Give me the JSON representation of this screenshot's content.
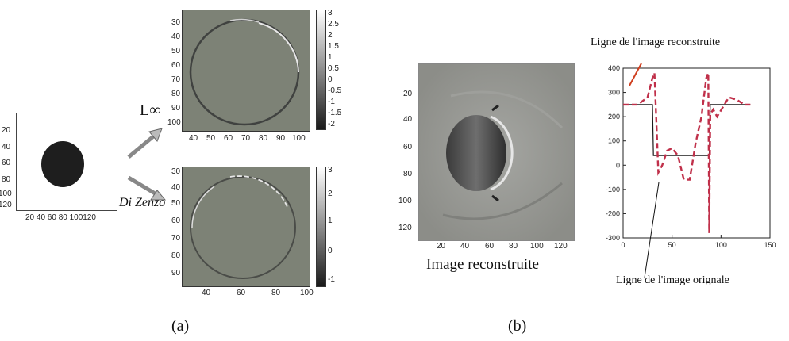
{
  "figure_a": {
    "label": "(a)",
    "input_image": {
      "y_ticks": [
        "20",
        "40",
        "60",
        "80",
        "100",
        "120"
      ],
      "x_ticks": "20 40 60 80 100120"
    },
    "arrow_top_label": "L∞",
    "arrow_bottom_label": "Di Zenzo",
    "top_image": {
      "y_ticks": [
        "30",
        "40",
        "50",
        "60",
        "70",
        "80",
        "90",
        "100"
      ],
      "x_ticks": [
        "40",
        "50",
        "60",
        "70",
        "80",
        "90",
        "100"
      ],
      "colorbar_ticks": [
        "3",
        "2.5",
        "2",
        "1.5",
        "1",
        "0.5",
        "0",
        "-0.5",
        "-1",
        "-1.5",
        "-2"
      ]
    },
    "bottom_image": {
      "y_ticks": [
        "30",
        "40",
        "50",
        "60",
        "70",
        "80",
        "90"
      ],
      "x_ticks": [
        "40",
        "60",
        "80",
        "100"
      ],
      "colorbar_ticks": [
        "3",
        "2",
        "1",
        "0",
        "-1"
      ]
    }
  },
  "figure_b": {
    "label": "(b)",
    "image_caption": "Image reconstruite",
    "image": {
      "y_ticks": [
        "20",
        "40",
        "60",
        "80",
        "100",
        "120"
      ],
      "x_ticks": [
        "20",
        "40",
        "60",
        "80",
        "100",
        "120"
      ]
    },
    "line_plot": {
      "annotation_reconstructed": "Ligne de l'image reconstruite",
      "annotation_original": "Ligne de l'image orignale",
      "y_ticks": [
        "400",
        "300",
        "200",
        "100",
        "0",
        "-100",
        "-200",
        "-300"
      ],
      "x_ticks": [
        "0",
        "50",
        "100",
        "150"
      ]
    }
  },
  "chart_data": {
    "type": "line",
    "xlim": [
      0,
      150
    ],
    "ylim": [
      -300,
      400
    ],
    "series": [
      {
        "style": "solid",
        "color": "#1a1a1a",
        "x": [
          0,
          30,
          31,
          88,
          89,
          130
        ],
        "y": [
          250,
          250,
          40,
          40,
          250,
          250
        ]
      },
      {
        "style": "dashed",
        "color": "#c0304a",
        "x": [
          0,
          15,
          25,
          30,
          32,
          36,
          40,
          45,
          50,
          56,
          62,
          68,
          74,
          80,
          85,
          87,
          88,
          89,
          92,
          96,
          102,
          108,
          116,
          124,
          130
        ],
        "y": [
          250,
          250,
          280,
          360,
          380,
          -30,
          0,
          60,
          70,
          40,
          -60,
          -60,
          90,
          200,
          360,
          380,
          -280,
          210,
          230,
          200,
          240,
          280,
          270,
          250,
          250
        ]
      }
    ]
  }
}
